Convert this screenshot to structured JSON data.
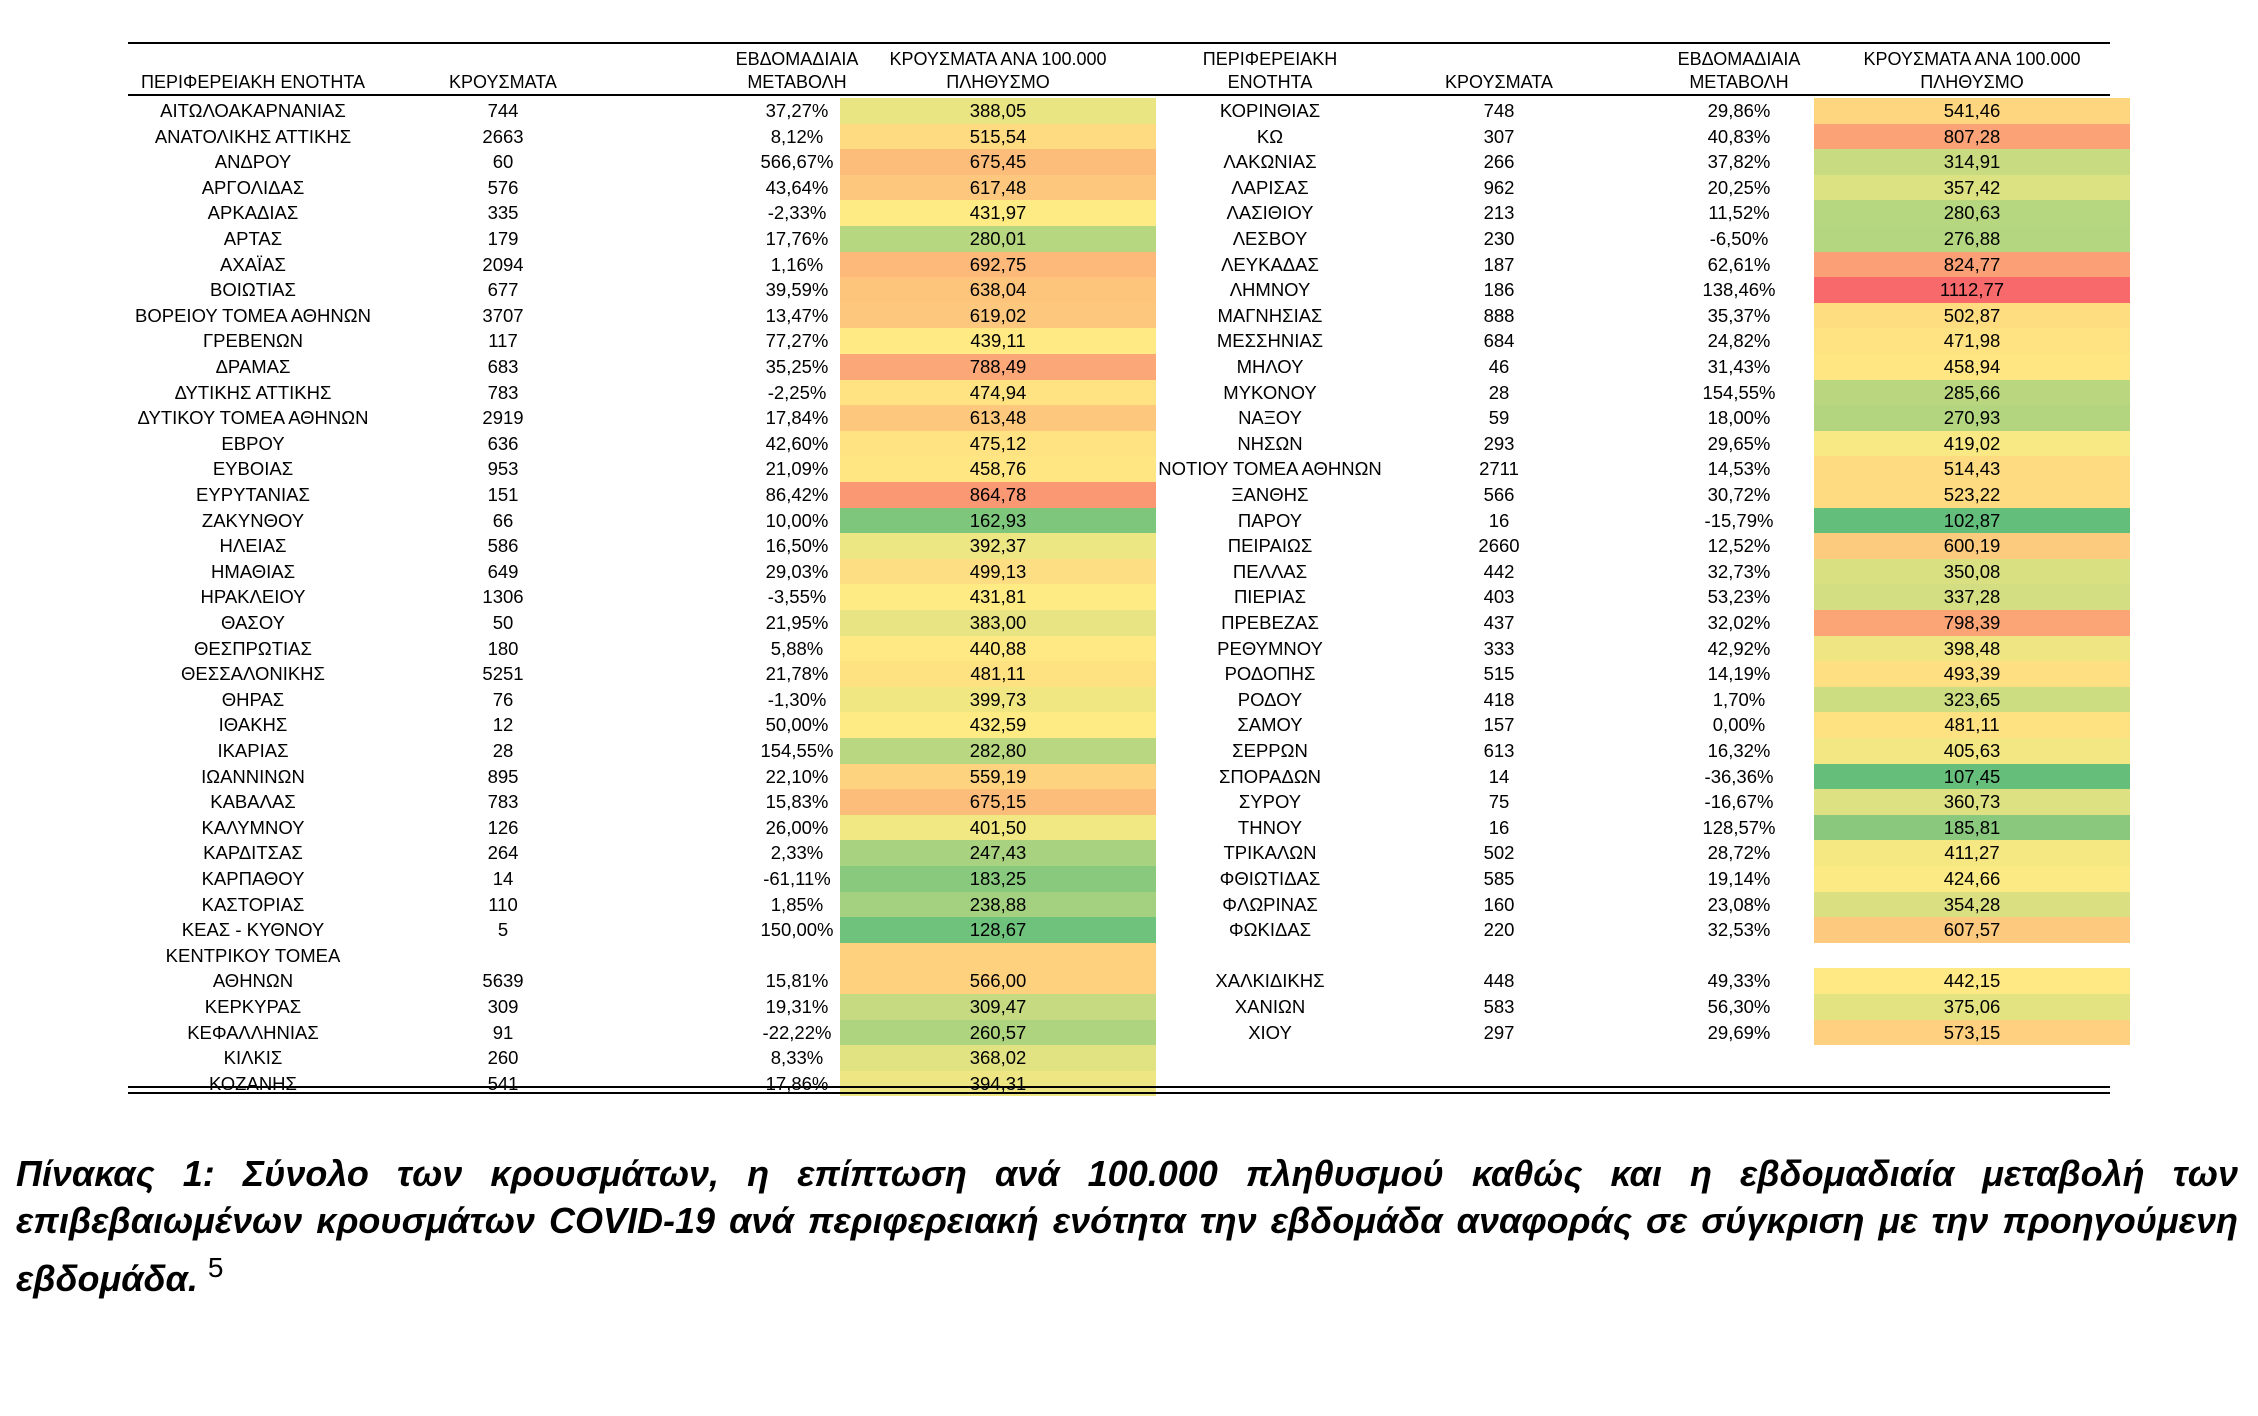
{
  "headers": {
    "region": "ΠΕΡΙΦΕΡΕΙΑΚΗ ΕΝΟΤΗΤΑ",
    "region_right_1": "ΠΕΡΙΦΕΡΕΙΑΚΗ",
    "region_right_2": "ΕΝΟΤΗΤΑ",
    "cases": "ΚΡΟΥΣΜΑΤΑ",
    "weekly_1": "ΕΒΔΟΜΑΔΙΑΙΑ",
    "weekly_2": "ΜΕΤΑΒΟΛΗ",
    "rate_1": "ΚΡΟΥΣΜΑΤΑ ΑΝΑ 100.000",
    "rate_2": "ΠΛΗΘΥΣΜΟ"
  },
  "rate_colors": {
    "low": "#63be7b",
    "mid": "#ffeb84",
    "high": "#f8696b"
  },
  "left_rows": [
    {
      "region": "ΑΙΤΩΛΟΑΚΑΡΝΑΝΙΑΣ",
      "cases": "744",
      "change": "37,27%",
      "rate": "388,05",
      "rate_value": 388.05
    },
    {
      "region": "ΑΝΑΤΟΛΙΚΗΣ ΑΤΤΙΚΗΣ",
      "cases": "2663",
      "change": "8,12%",
      "rate": "515,54",
      "rate_value": 515.54
    },
    {
      "region": "ΑΝΔΡΟΥ",
      "cases": "60",
      "change": "566,67%",
      "rate": "675,45",
      "rate_value": 675.45
    },
    {
      "region": "ΑΡΓΟΛΙΔΑΣ",
      "cases": "576",
      "change": "43,64%",
      "rate": "617,48",
      "rate_value": 617.48
    },
    {
      "region": "ΑΡΚΑΔΙΑΣ",
      "cases": "335",
      "change": "-2,33%",
      "rate": "431,97",
      "rate_value": 431.97
    },
    {
      "region": "ΑΡΤΑΣ",
      "cases": "179",
      "change": "17,76%",
      "rate": "280,01",
      "rate_value": 280.01
    },
    {
      "region": "ΑΧΑΪΑΣ",
      "cases": "2094",
      "change": "1,16%",
      "rate": "692,75",
      "rate_value": 692.75
    },
    {
      "region": "ΒΟΙΩΤΙΑΣ",
      "cases": "677",
      "change": "39,59%",
      "rate": "638,04",
      "rate_value": 638.04
    },
    {
      "region": "ΒΟΡΕΙΟΥ ΤΟΜΕΑ ΑΘΗΝΩΝ",
      "cases": "3707",
      "change": "13,47%",
      "rate": "619,02",
      "rate_value": 619.02
    },
    {
      "region": "ΓΡΕΒΕΝΩΝ",
      "cases": "117",
      "change": "77,27%",
      "rate": "439,11",
      "rate_value": 439.11
    },
    {
      "region": "ΔΡΑΜΑΣ",
      "cases": "683",
      "change": "35,25%",
      "rate": "788,49",
      "rate_value": 788.49
    },
    {
      "region": "ΔΥΤΙΚΗΣ ΑΤΤΙΚΗΣ",
      "cases": "783",
      "change": "-2,25%",
      "rate": "474,94",
      "rate_value": 474.94
    },
    {
      "region": "ΔΥΤΙΚΟΥ ΤΟΜΕΑ ΑΘΗΝΩΝ",
      "cases": "2919",
      "change": "17,84%",
      "rate": "613,48",
      "rate_value": 613.48
    },
    {
      "region": "ΕΒΡΟΥ",
      "cases": "636",
      "change": "42,60%",
      "rate": "475,12",
      "rate_value": 475.12
    },
    {
      "region": "ΕΥΒΟΙΑΣ",
      "cases": "953",
      "change": "21,09%",
      "rate": "458,76",
      "rate_value": 458.76
    },
    {
      "region": "ΕΥΡΥΤΑΝΙΑΣ",
      "cases": "151",
      "change": "86,42%",
      "rate": "864,78",
      "rate_value": 864.78
    },
    {
      "region": "ΖΑΚΥΝΘΟΥ",
      "cases": "66",
      "change": "10,00%",
      "rate": "162,93",
      "rate_value": 162.93
    },
    {
      "region": "ΗΛΕΙΑΣ",
      "cases": "586",
      "change": "16,50%",
      "rate": "392,37",
      "rate_value": 392.37
    },
    {
      "region": "ΗΜΑΘΙΑΣ",
      "cases": "649",
      "change": "29,03%",
      "rate": "499,13",
      "rate_value": 499.13
    },
    {
      "region": "ΗΡΑΚΛΕΙΟΥ",
      "cases": "1306",
      "change": "-3,55%",
      "rate": "431,81",
      "rate_value": 431.81
    },
    {
      "region": "ΘΑΣΟΥ",
      "cases": "50",
      "change": "21,95%",
      "rate": "383,00",
      "rate_value": 383.0
    },
    {
      "region": "ΘΕΣΠΡΩΤΙΑΣ",
      "cases": "180",
      "change": "5,88%",
      "rate": "440,88",
      "rate_value": 440.88
    },
    {
      "region": "ΘΕΣΣΑΛΟΝΙΚΗΣ",
      "cases": "5251",
      "change": "21,78%",
      "rate": "481,11",
      "rate_value": 481.11
    },
    {
      "region": "ΘΗΡΑΣ",
      "cases": "76",
      "change": "-1,30%",
      "rate": "399,73",
      "rate_value": 399.73
    },
    {
      "region": "ΙΘΑΚΗΣ",
      "cases": "12",
      "change": "50,00%",
      "rate": "432,59",
      "rate_value": 432.59
    },
    {
      "region": "ΙΚΑΡΙΑΣ",
      "cases": "28",
      "change": "154,55%",
      "rate": "282,80",
      "rate_value": 282.8
    },
    {
      "region": "ΙΩΑΝΝΙΝΩΝ",
      "cases": "895",
      "change": "22,10%",
      "rate": "559,19",
      "rate_value": 559.19
    },
    {
      "region": "ΚΑΒΑΛΑΣ",
      "cases": "783",
      "change": "15,83%",
      "rate": "675,15",
      "rate_value": 675.15
    },
    {
      "region": "ΚΑΛΥΜΝΟΥ",
      "cases": "126",
      "change": "26,00%",
      "rate": "401,50",
      "rate_value": 401.5
    },
    {
      "region": "ΚΑΡΔΙΤΣΑΣ",
      "cases": "264",
      "change": "2,33%",
      "rate": "247,43",
      "rate_value": 247.43
    },
    {
      "region": "ΚΑΡΠΑΘΟΥ",
      "cases": "14",
      "change": "-61,11%",
      "rate": "183,25",
      "rate_value": 183.25
    },
    {
      "region": "ΚΑΣΤΟΡΙΑΣ",
      "cases": "110",
      "change": "1,85%",
      "rate": "238,88",
      "rate_value": 238.88
    },
    {
      "region": "ΚΕΑΣ - ΚΥΘΝΟΥ",
      "cases": "5",
      "change": "150,00%",
      "rate": "128,67",
      "rate_value": 128.67
    },
    {
      "region": "ΚΕΝΤΡΙΚΟΥ ΤΟΜΕΑ",
      "region2": "ΑΘΗΝΩΝ",
      "cases": "5639",
      "change": "15,81%",
      "rate": "566,00",
      "rate_value": 566.0
    },
    {
      "region": "ΚΕΡΚΥΡΑΣ",
      "cases": "309",
      "change": "19,31%",
      "rate": "309,47",
      "rate_value": 309.47
    },
    {
      "region": "ΚΕΦΑΛΛΗΝΙΑΣ",
      "cases": "91",
      "change": "-22,22%",
      "rate": "260,57",
      "rate_value": 260.57
    },
    {
      "region": "ΚΙΛΚΙΣ",
      "cases": "260",
      "change": "8,33%",
      "rate": "368,02",
      "rate_value": 368.02
    },
    {
      "region": "ΚΟΖΑΝΗΣ",
      "cases": "541",
      "change": "17,86%",
      "rate": "394,31",
      "rate_value": 394.31
    }
  ],
  "right_rows": [
    {
      "region": "ΚΟΡΙΝΘΙΑΣ",
      "cases": "748",
      "change": "29,86%",
      "rate": "541,46",
      "rate_value": 541.46
    },
    {
      "region": "ΚΩ",
      "cases": "307",
      "change": "40,83%",
      "rate": "807,28",
      "rate_value": 807.28
    },
    {
      "region": "ΛΑΚΩΝΙΑΣ",
      "cases": "266",
      "change": "37,82%",
      "rate": "314,91",
      "rate_value": 314.91
    },
    {
      "region": "ΛΑΡΙΣΑΣ",
      "cases": "962",
      "change": "20,25%",
      "rate": "357,42",
      "rate_value": 357.42
    },
    {
      "region": "ΛΑΣΙΘΙΟΥ",
      "cases": "213",
      "change": "11,52%",
      "rate": "280,63",
      "rate_value": 280.63
    },
    {
      "region": "ΛΕΣΒΟΥ",
      "cases": "230",
      "change": "-6,50%",
      "rate": "276,88",
      "rate_value": 276.88
    },
    {
      "region": "ΛΕΥΚΑΔΑΣ",
      "cases": "187",
      "change": "62,61%",
      "rate": "824,77",
      "rate_value": 824.77
    },
    {
      "region": "ΛΗΜΝΟΥ",
      "cases": "186",
      "change": "138,46%",
      "rate": "1112,77",
      "rate_value": 1112.77
    },
    {
      "region": "ΜΑΓΝΗΣΙΑΣ",
      "cases": "888",
      "change": "35,37%",
      "rate": "502,87",
      "rate_value": 502.87
    },
    {
      "region": "ΜΕΣΣΗΝΙΑΣ",
      "cases": "684",
      "change": "24,82%",
      "rate": "471,98",
      "rate_value": 471.98
    },
    {
      "region": "ΜΗΛΟΥ",
      "cases": "46",
      "change": "31,43%",
      "rate": "458,94",
      "rate_value": 458.94
    },
    {
      "region": "ΜΥΚΟΝΟΥ",
      "cases": "28",
      "change": "154,55%",
      "rate": "285,66",
      "rate_value": 285.66
    },
    {
      "region": "ΝΑΞΟΥ",
      "cases": "59",
      "change": "18,00%",
      "rate": "270,93",
      "rate_value": 270.93
    },
    {
      "region": "ΝΗΣΩΝ",
      "cases": "293",
      "change": "29,65%",
      "rate": "419,02",
      "rate_value": 419.02
    },
    {
      "region": "ΝΟΤΙΟΥ ΤΟΜΕΑ ΑΘΗΝΩΝ",
      "cases": "2711",
      "change": "14,53%",
      "rate": "514,43",
      "rate_value": 514.43
    },
    {
      "region": "ΞΑΝΘΗΣ",
      "cases": "566",
      "change": "30,72%",
      "rate": "523,22",
      "rate_value": 523.22
    },
    {
      "region": "ΠΑΡΟΥ",
      "cases": "16",
      "change": "-15,79%",
      "rate": "102,87",
      "rate_value": 102.87
    },
    {
      "region": "ΠΕΙΡΑΙΩΣ",
      "cases": "2660",
      "change": "12,52%",
      "rate": "600,19",
      "rate_value": 600.19
    },
    {
      "region": "ΠΕΛΛΑΣ",
      "cases": "442",
      "change": "32,73%",
      "rate": "350,08",
      "rate_value": 350.08
    },
    {
      "region": "ΠΙΕΡΙΑΣ",
      "cases": "403",
      "change": "53,23%",
      "rate": "337,28",
      "rate_value": 337.28
    },
    {
      "region": "ΠΡΕΒΕΖΑΣ",
      "cases": "437",
      "change": "32,02%",
      "rate": "798,39",
      "rate_value": 798.39
    },
    {
      "region": "ΡΕΘΥΜΝΟΥ",
      "cases": "333",
      "change": "42,92%",
      "rate": "398,48",
      "rate_value": 398.48
    },
    {
      "region": "ΡΟΔΟΠΗΣ",
      "cases": "515",
      "change": "14,19%",
      "rate": "493,39",
      "rate_value": 493.39
    },
    {
      "region": "ΡΟΔΟΥ",
      "cases": "418",
      "change": "1,70%",
      "rate": "323,65",
      "rate_value": 323.65
    },
    {
      "region": "ΣΑΜΟΥ",
      "cases": "157",
      "change": "0,00%",
      "rate": "481,11",
      "rate_value": 481.11
    },
    {
      "region": "ΣΕΡΡΩΝ",
      "cases": "613",
      "change": "16,32%",
      "rate": "405,63",
      "rate_value": 405.63
    },
    {
      "region": "ΣΠΟΡΑΔΩΝ",
      "cases": "14",
      "change": "-36,36%",
      "rate": "107,45",
      "rate_value": 107.45
    },
    {
      "region": "ΣΥΡΟΥ",
      "cases": "75",
      "change": "-16,67%",
      "rate": "360,73",
      "rate_value": 360.73
    },
    {
      "region": "ΤΗΝΟΥ",
      "cases": "16",
      "change": "128,57%",
      "rate": "185,81",
      "rate_value": 185.81
    },
    {
      "region": "ΤΡΙΚΑΛΩΝ",
      "cases": "502",
      "change": "28,72%",
      "rate": "411,27",
      "rate_value": 411.27
    },
    {
      "region": "ΦΘΙΩΤΙΔΑΣ",
      "cases": "585",
      "change": "19,14%",
      "rate": "424,66",
      "rate_value": 424.66
    },
    {
      "region": "ΦΛΩΡΙΝΑΣ",
      "cases": "160",
      "change": "23,08%",
      "rate": "354,28",
      "rate_value": 354.28
    },
    {
      "region": "ΦΩΚΙΔΑΣ",
      "cases": "220",
      "change": "32,53%",
      "rate": "607,57",
      "rate_value": 607.57
    },
    {
      "region": "",
      "cases": "",
      "change": "",
      "rate": "",
      "rate_value": null
    },
    {
      "region": "ΧΑΛΚΙΔΙΚΗΣ",
      "cases": "448",
      "change": "49,33%",
      "rate": "442,15",
      "rate_value": 442.15
    },
    {
      "region": "ΧΑΝΙΩΝ",
      "cases": "583",
      "change": "56,30%",
      "rate": "375,06",
      "rate_value": 375.06
    },
    {
      "region": "ΧΙΟΥ",
      "cases": "297",
      "change": "29,69%",
      "rate": "573,15",
      "rate_value": 573.15
    }
  ],
  "caption": {
    "text": "Πίνακας 1: Σύνολο των κρουσμάτων, η επίπτωση ανά 100.000 πληθυσμού καθώς και η εβδομαδιαία μεταβολή των επιβεβαιωμένων κρουσμάτων COVID-19 ανά περιφερειακή ενότητα την εβδομάδα αναφοράς σε σύγκριση με την προηγούμενη εβδομάδα.",
    "footnote": "5"
  }
}
